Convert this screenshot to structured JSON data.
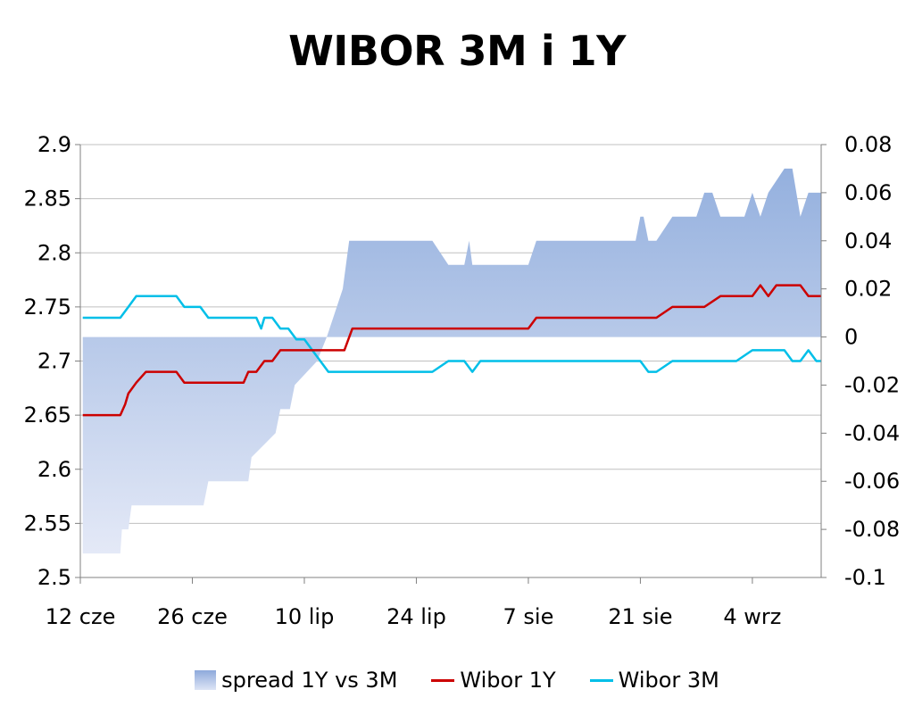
{
  "colors": {
    "spread_top": "#94b0de",
    "spread_bottom": "#e4e9f7",
    "wibor_1y": "#cc0000",
    "wibor_3m": "#00bfe8",
    "grid": "#c0c0c0",
    "axis": "#808080"
  },
  "chart_data": {
    "type": "line",
    "title": "WIBOR 3M i 1Y",
    "x_ticks": [
      "12 cze",
      "26 cze",
      "10 lip",
      "24 lip",
      "7 sie",
      "21 sie",
      "4 wrz"
    ],
    "x_tick_days": [
      0,
      14,
      28,
      42,
      56,
      70,
      84
    ],
    "x_range": [
      0,
      92.6
    ],
    "y_left": {
      "range": [
        2.5,
        2.9
      ],
      "ticks": [
        "2.5",
        "2.55",
        "2.6",
        "2.65",
        "2.7",
        "2.75",
        "2.8",
        "2.85",
        "2.9"
      ]
    },
    "y_right": {
      "range": [
        -0.1,
        0.08
      ],
      "ticks": [
        "-0.1",
        "-0.08",
        "-0.06",
        "-0.04",
        "-0.02",
        "0",
        "0.02",
        "0.04",
        "0.06",
        "0.08"
      ]
    },
    "grid": "horizontal",
    "legend": "bottom",
    "series": [
      {
        "name": "spread 1Y vs 3M",
        "type": "area",
        "axis": "right",
        "x": [
          0.3,
          5,
          5.2,
          6,
          6.4,
          8.2,
          15.4,
          16,
          17.4,
          21,
          21.4,
          24.4,
          25,
          26.2,
          26.8,
          29.6,
          30.8,
          32.8,
          33.2,
          33.6,
          40.2,
          42,
          44,
          46,
          47,
          48,
          48.6,
          49,
          50.6,
          55,
          56,
          57,
          58,
          69.4,
          70,
          70.4,
          71,
          72,
          74,
          75,
          77,
          78,
          79,
          80,
          81,
          82,
          83,
          84,
          85,
          86,
          88,
          89,
          90,
          91,
          91.8,
          92.6
        ],
        "y": [
          -0.09,
          -0.09,
          -0.08,
          -0.08,
          -0.07,
          -0.07,
          -0.07,
          -0.06,
          -0.06,
          -0.06,
          -0.05,
          -0.04,
          -0.03,
          -0.03,
          -0.02,
          -0.01,
          0.0,
          0.02,
          0.03,
          0.04,
          0.04,
          0.04,
          0.04,
          0.03,
          0.03,
          0.03,
          0.04,
          0.03,
          0.03,
          0.03,
          0.03,
          0.04,
          0.04,
          0.04,
          0.05,
          0.05,
          0.04,
          0.04,
          0.05,
          0.05,
          0.05,
          0.06,
          0.06,
          0.05,
          0.05,
          0.05,
          0.05,
          0.06,
          0.05,
          0.06,
          0.07,
          0.07,
          0.05,
          0.06,
          0.06,
          0.06
        ]
      },
      {
        "name": "Wibor 1Y",
        "type": "line",
        "axis": "left",
        "x": [
          0.3,
          5,
          5.6,
          6,
          7,
          8.2,
          10,
          12,
          13,
          15,
          16,
          18,
          20,
          20.4,
          21,
          22,
          23,
          24,
          25,
          26,
          28,
          29,
          30,
          33,
          34,
          36,
          38,
          40,
          42,
          44,
          46,
          48,
          50,
          52,
          54,
          56,
          57,
          58,
          60,
          62,
          64,
          66,
          68,
          70,
          72,
          74,
          75,
          76,
          78,
          80,
          82,
          84,
          85,
          86,
          87,
          88,
          89,
          90,
          91,
          92,
          92.6
        ],
        "y": [
          2.65,
          2.65,
          2.66,
          2.67,
          2.68,
          2.69,
          2.69,
          2.69,
          2.68,
          2.68,
          2.68,
          2.68,
          2.68,
          2.68,
          2.69,
          2.69,
          2.7,
          2.7,
          2.71,
          2.71,
          2.71,
          2.71,
          2.71,
          2.71,
          2.73,
          2.73,
          2.73,
          2.73,
          2.73,
          2.73,
          2.73,
          2.73,
          2.73,
          2.73,
          2.73,
          2.73,
          2.74,
          2.74,
          2.74,
          2.74,
          2.74,
          2.74,
          2.74,
          2.74,
          2.74,
          2.75,
          2.75,
          2.75,
          2.75,
          2.76,
          2.76,
          2.76,
          2.77,
          2.76,
          2.77,
          2.77,
          2.77,
          2.77,
          2.76,
          2.76,
          2.76
        ]
      },
      {
        "name": "Wibor 3M",
        "type": "line",
        "axis": "left",
        "x": [
          0.3,
          5,
          6,
          7,
          8,
          10,
          12,
          13,
          14,
          15,
          16,
          18,
          20,
          21,
          22,
          22.6,
          23,
          24,
          25,
          25.6,
          26,
          27,
          28,
          29,
          30,
          31,
          32,
          33,
          34,
          36,
          38,
          40,
          42,
          44,
          46,
          47,
          48,
          49,
          50,
          52,
          54,
          56,
          58,
          60,
          62,
          64,
          66,
          68,
          69,
          70,
          71,
          72,
          74,
          76,
          78,
          80,
          82,
          84,
          86,
          87,
          88,
          89,
          90,
          91,
          92,
          92.6
        ],
        "y": [
          2.74,
          2.74,
          2.75,
          2.76,
          2.76,
          2.76,
          2.76,
          2.75,
          2.75,
          2.75,
          2.74,
          2.74,
          2.74,
          2.74,
          2.74,
          2.73,
          2.74,
          2.74,
          2.73,
          2.73,
          2.73,
          2.72,
          2.72,
          2.71,
          2.7,
          2.69,
          2.69,
          2.69,
          2.69,
          2.69,
          2.69,
          2.69,
          2.69,
          2.69,
          2.7,
          2.7,
          2.7,
          2.69,
          2.7,
          2.7,
          2.7,
          2.7,
          2.7,
          2.7,
          2.7,
          2.7,
          2.7,
          2.7,
          2.7,
          2.7,
          2.69,
          2.69,
          2.7,
          2.7,
          2.7,
          2.7,
          2.7,
          2.71,
          2.71,
          2.71,
          2.71,
          2.7,
          2.7,
          2.71,
          2.7,
          2.7
        ]
      }
    ]
  }
}
